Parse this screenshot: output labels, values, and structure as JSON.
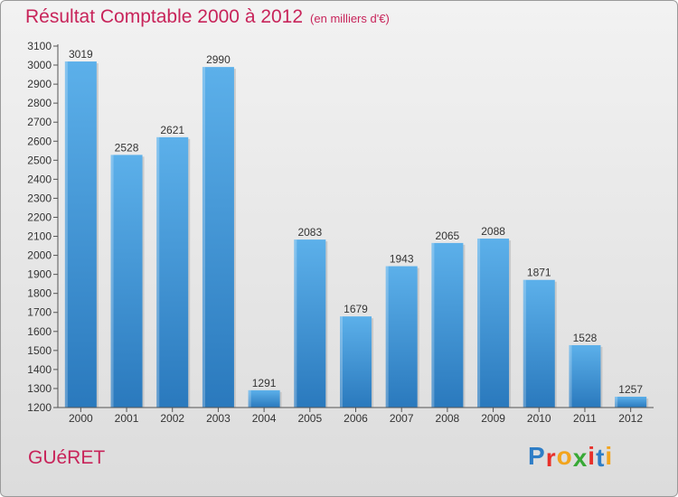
{
  "chart_data": {
    "type": "bar",
    "title": "Résultat Comptable 2000 à 2012",
    "subtitle": "(en milliers d'€)",
    "categories": [
      "2000",
      "2001",
      "2002",
      "2003",
      "2004",
      "2005",
      "2006",
      "2007",
      "2008",
      "2009",
      "2010",
      "2011",
      "2012"
    ],
    "values": [
      3019,
      2528,
      2621,
      2990,
      1291,
      2083,
      1679,
      1943,
      2065,
      2088,
      1871,
      1528,
      1257
    ],
    "ylim": [
      1200,
      3100
    ],
    "ytick_step": 100,
    "xlabel": "",
    "ylabel": "",
    "grid": false
  },
  "location": "GUéRET",
  "logo": {
    "letters": [
      "P",
      "r",
      "o",
      "x",
      "i",
      "t",
      "i"
    ],
    "colors": [
      "#2e7dc6",
      "#e8302a",
      "#f2a41d",
      "#38a936",
      "#e8302a",
      "#2e7dc6",
      "#f2a41d"
    ]
  },
  "colors": {
    "title": "#c8245a",
    "bar_top": "#5cb0ea",
    "bar_bottom": "#2a79bd"
  }
}
